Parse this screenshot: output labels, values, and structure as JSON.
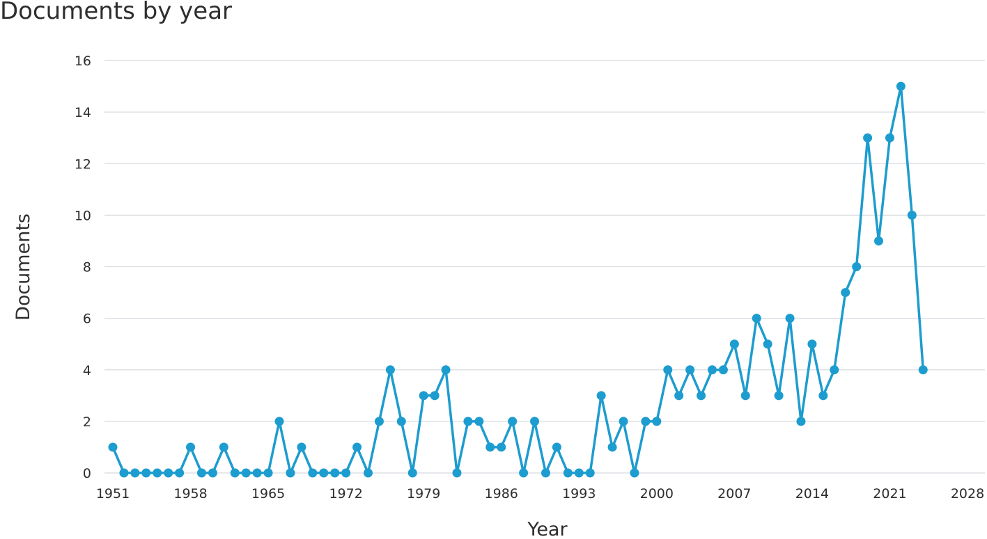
{
  "chart_data": {
    "type": "line",
    "title": "Documents by year",
    "xlabel": "Year",
    "ylabel": "Documents",
    "xlim": [
      1951,
      2028
    ],
    "ylim": [
      0,
      16
    ],
    "x_ticks": [
      1951,
      1958,
      1965,
      1972,
      1979,
      1986,
      1993,
      2000,
      2007,
      2014,
      2021,
      2028
    ],
    "y_ticks": [
      0,
      2,
      4,
      6,
      8,
      10,
      12,
      14,
      16
    ],
    "grid": "horizontal",
    "legend": "none",
    "color": "#1d9ccf",
    "series": [
      {
        "points": [
          [
            1951,
            1
          ],
          [
            1952,
            0
          ],
          [
            1953,
            0
          ],
          [
            1954,
            0
          ],
          [
            1955,
            0
          ],
          [
            1956,
            0
          ],
          [
            1957,
            0
          ],
          [
            1958,
            1
          ],
          [
            1959,
            0
          ],
          [
            1960,
            0
          ],
          [
            1961,
            1
          ],
          [
            1962,
            0
          ],
          [
            1963,
            0
          ],
          [
            1964,
            0
          ],
          [
            1965,
            0
          ],
          [
            1966,
            2
          ],
          [
            1967,
            0
          ],
          [
            1968,
            1
          ],
          [
            1969,
            0
          ],
          [
            1970,
            0
          ],
          [
            1971,
            0
          ],
          [
            1972,
            0
          ],
          [
            1973,
            1
          ],
          [
            1974,
            0
          ],
          [
            1975,
            2
          ],
          [
            1976,
            4
          ],
          [
            1977,
            2
          ],
          [
            1978,
            0
          ],
          [
            1979,
            3
          ],
          [
            1980,
            3
          ],
          [
            1981,
            4
          ],
          [
            1982,
            0
          ],
          [
            1983,
            2
          ],
          [
            1984,
            2
          ],
          [
            1985,
            1
          ],
          [
            1986,
            1
          ],
          [
            1987,
            2
          ],
          [
            1988,
            0
          ],
          [
            1989,
            2
          ],
          [
            1990,
            0
          ],
          [
            1991,
            1
          ],
          [
            1992,
            0
          ],
          [
            1993,
            0
          ],
          [
            1994,
            0
          ],
          [
            1995,
            3
          ],
          [
            1996,
            1
          ],
          [
            1997,
            2
          ],
          [
            1998,
            0
          ],
          [
            1999,
            2
          ],
          [
            2000,
            2
          ],
          [
            2001,
            4
          ],
          [
            2002,
            3
          ],
          [
            2003,
            4
          ],
          [
            2004,
            3
          ],
          [
            2005,
            4
          ],
          [
            2006,
            4
          ],
          [
            2007,
            5
          ],
          [
            2008,
            3
          ],
          [
            2009,
            6
          ],
          [
            2010,
            5
          ],
          [
            2011,
            3
          ],
          [
            2012,
            6
          ],
          [
            2013,
            2
          ],
          [
            2014,
            5
          ],
          [
            2015,
            3
          ],
          [
            2016,
            4
          ],
          [
            2017,
            7
          ],
          [
            2018,
            8
          ],
          [
            2019,
            13
          ],
          [
            2020,
            9
          ],
          [
            2021,
            13
          ],
          [
            2022,
            15
          ],
          [
            2023,
            10
          ],
          [
            2024,
            4
          ]
        ]
      }
    ]
  }
}
